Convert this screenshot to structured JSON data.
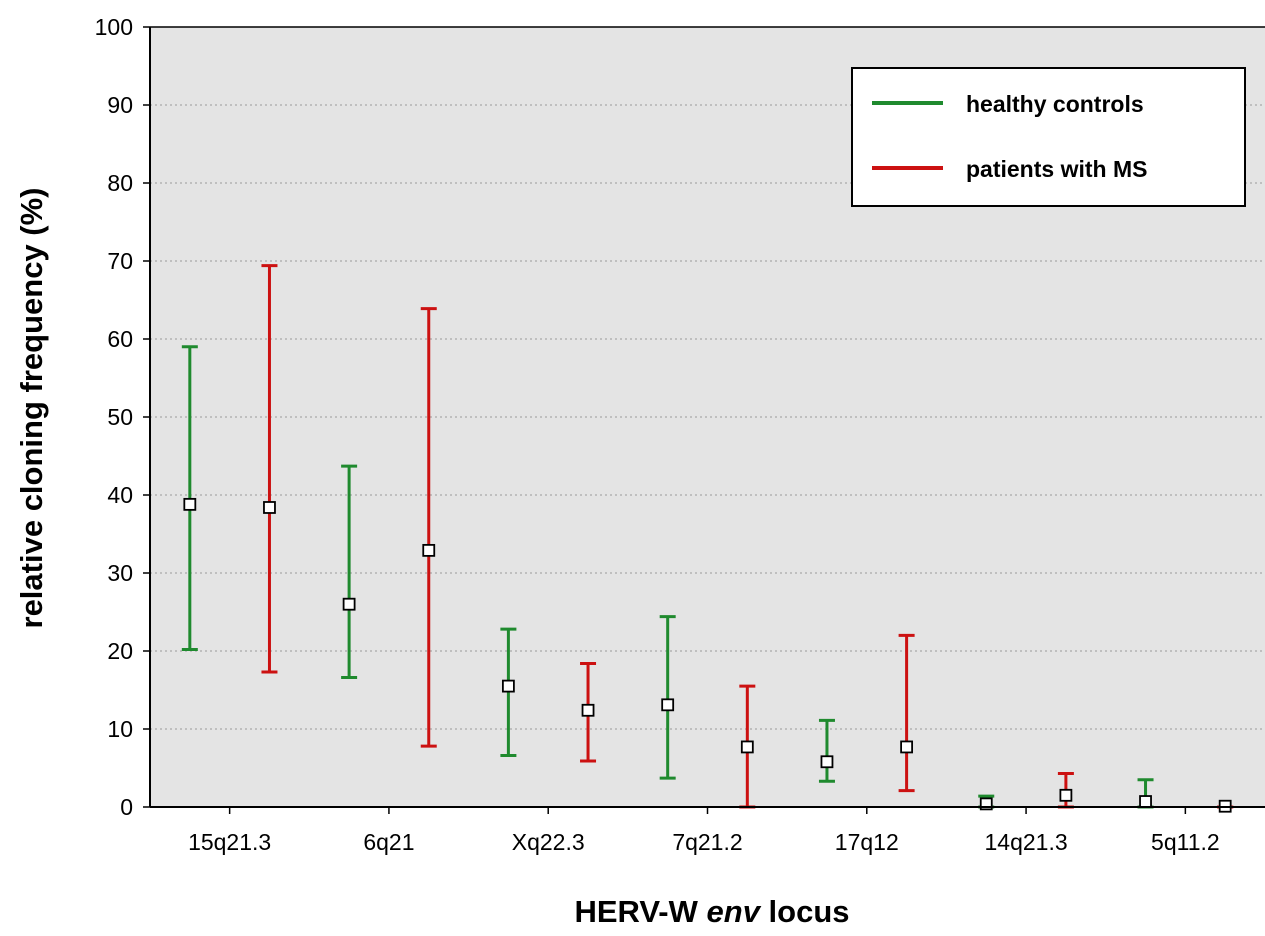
{
  "chart_data": {
    "type": "scatter",
    "xlabel_parts": [
      "HERV-W ",
      "env",
      " locus"
    ],
    "ylabel": "relative cloning frequency (%)",
    "ylim": [
      0,
      100
    ],
    "yticks": [
      "0",
      "10",
      "20",
      "30",
      "40",
      "50",
      "60",
      "70",
      "80",
      "90",
      "100"
    ],
    "categories": [
      "15q21.3",
      "6q21",
      "Xq22.3",
      "7q21.2",
      "17q12",
      "14q21.3",
      "5q11.2"
    ],
    "grid": "horizontal dotted",
    "legend_position": "top-right",
    "series": [
      {
        "name": "healthy controls",
        "color": "#1f8a2e",
        "mean": [
          38.8,
          26.0,
          15.5,
          13.1,
          5.8,
          0.4,
          0.7
        ],
        "lower": [
          20.2,
          16.6,
          6.6,
          3.7,
          3.3,
          0.0,
          0.0
        ],
        "upper": [
          59.0,
          43.7,
          22.8,
          24.4,
          11.1,
          1.4,
          3.5
        ]
      },
      {
        "name": "patients with MS",
        "color": "#cc1111",
        "mean": [
          38.4,
          32.9,
          12.4,
          7.7,
          7.7,
          1.5,
          0.1
        ],
        "lower": [
          17.3,
          7.8,
          5.9,
          0.0,
          2.1,
          0.0,
          0.0
        ],
        "upper": [
          69.4,
          63.9,
          18.4,
          15.5,
          22.0,
          4.3,
          0.0
        ]
      }
    ]
  }
}
